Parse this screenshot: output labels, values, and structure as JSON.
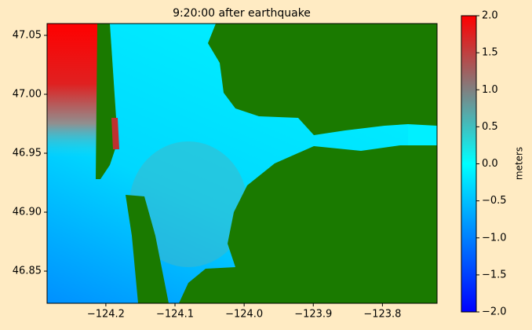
{
  "chart_data": {
    "type": "map",
    "title": "9:20:00 after earthquake",
    "xlim": [
      -124.285,
      -123.721
    ],
    "ylim": [
      46.8227,
      47.06
    ],
    "xticks": [
      {
        "value": -124.2,
        "label": "−124.2"
      },
      {
        "value": -124.1,
        "label": "−124.1"
      },
      {
        "value": -124.0,
        "label": "−124.0"
      },
      {
        "value": -123.9,
        "label": "−123.9"
      },
      {
        "value": -123.8,
        "label": "−123.8"
      }
    ],
    "yticks": [
      46.85,
      {
        "value": 46.9,
        "label": "46.90"
      },
      46.95,
      {
        "value": 47.0,
        "label": "47.00"
      },
      47.05
    ],
    "colorbar": {
      "label": "meters",
      "lim": [
        -2,
        2
      ],
      "ticks": [
        {
          "value": -2,
          "label": "−2.0"
        },
        {
          "value": -1.5,
          "label": "−1.5"
        },
        {
          "value": -1,
          "label": "−1.0"
        },
        {
          "value": -0.5,
          "label": "−0.5"
        },
        {
          "value": 0,
          "label": "0.0"
        },
        0.5,
        {
          "value": 1,
          "label": "1.0"
        },
        1.5,
        {
          "value": 2,
          "label": "2.0"
        }
      ]
    }
  }
}
